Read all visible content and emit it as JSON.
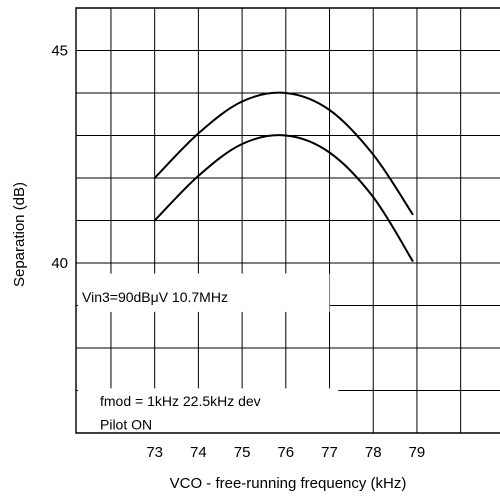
{
  "chart_data": {
    "type": "line",
    "xlabel": "VCO - free-running frequency (kHz)",
    "ylabel": "Separation (dB)",
    "x_ticks": [
      73,
      74,
      75,
      76,
      77,
      78,
      79
    ],
    "x_tick_labels": [
      "73",
      "74",
      "75",
      "76",
      "77",
      "78",
      "79"
    ],
    "y_ticks": [
      40,
      45
    ],
    "y_tick_labels": [
      "40",
      "45"
    ],
    "xlim": [
      71.2,
      80.9
    ],
    "ylim": [
      36,
      46
    ],
    "grid": true,
    "series": [
      {
        "values_x": [
          73,
          74,
          75,
          76,
          77,
          78,
          78.9
        ],
        "values_y": [
          42,
          43.05,
          43.8,
          44,
          43.6,
          42.55,
          41.15
        ]
      },
      {
        "values_x": [
          73,
          74,
          75,
          76,
          77,
          78,
          78.9
        ],
        "values_y": [
          41,
          42.05,
          42.8,
          43,
          42.6,
          41.55,
          40.05
        ]
      }
    ],
    "annotations": [
      "Vin3=90dBμV  10.7MHz",
      "fmod = 1kHz 22.5kHz dev",
      "Pilot ON"
    ]
  }
}
